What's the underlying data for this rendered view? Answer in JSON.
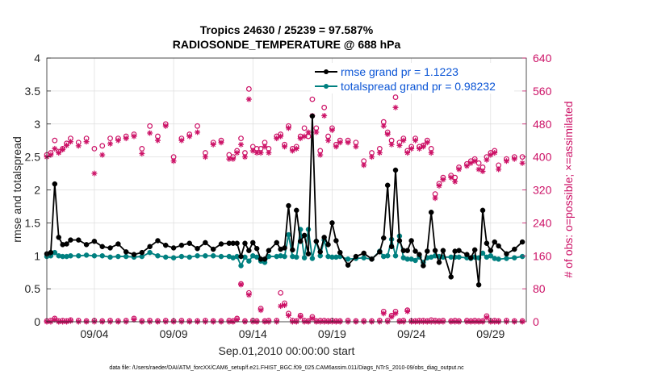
{
  "chart_data": {
    "type": "line",
    "title": "Tropics 24630 / 25239 = 97.587%",
    "subtitle": "RADIOSONDE_TEMPERATURE @ 688 hPa",
    "xlabel": "Sep.01,2010 00:00:00 start",
    "ylabel_left": "rmse and totalspread",
    "ylabel_right": "# of obs: o=possible; ×=assimilated",
    "footer": "data file: /Users/raeder/DAI/ATM_forcXX/CAM6_setup/f.e21.FHIST_BGC.f09_025.CAM6assim.011/Diags_NTrS_2010-09/obs_diag_output.nc",
    "xlim": [
      0.5,
      30.75
    ],
    "ylim_left": [
      0,
      4
    ],
    "ylim_right": [
      0,
      640
    ],
    "x_ticks": [
      3.5,
      8.5,
      13.5,
      18.5,
      23.5,
      28.5
    ],
    "x_tick_labels": [
      "09/04",
      "09/09",
      "09/14",
      "09/19",
      "09/24",
      "09/29"
    ],
    "y_left_ticks": [
      0,
      0.5,
      1,
      1.5,
      2,
      2.5,
      3,
      3.5,
      4
    ],
    "y_left_tick_labels": [
      "0",
      "0.5",
      "1",
      "1.5",
      "2",
      "2.5",
      "3",
      "3.5",
      "4"
    ],
    "y_right_ticks": [
      0,
      80,
      160,
      240,
      320,
      400,
      480,
      560,
      640
    ],
    "y_right_tick_labels": [
      "0",
      "80",
      "160",
      "240",
      "320",
      "400",
      "480",
      "560",
      "640"
    ],
    "grid": true,
    "legend_position": "top-right",
    "colors": {
      "rmse": "#000000",
      "spread": "#008080",
      "obs": "#cc1166",
      "legend_text": "#0b55d6",
      "right_axis": "#cc1166"
    },
    "series": [
      {
        "name": "rmse grand pr = 1.1223",
        "axis": "left",
        "x": [
          0.5,
          0.75,
          1,
          1.25,
          1.5,
          1.75,
          2,
          2.5,
          3,
          3.5,
          4,
          4.5,
          5,
          5.5,
          6,
          6.5,
          7,
          7.5,
          8,
          8.5,
          9,
          9.5,
          10,
          10.5,
          11,
          11.5,
          12,
          12.25,
          12.5,
          12.75,
          13,
          13.25,
          13.5,
          13.75,
          14,
          14.25,
          14.5,
          15,
          15.25,
          15.5,
          15.75,
          16,
          16.25,
          16.5,
          16.75,
          17,
          17.25,
          17.5,
          17.75,
          18,
          18.25,
          18.5,
          18.75,
          19,
          19.5,
          20,
          20.5,
          21,
          21.5,
          21.75,
          22,
          22.25,
          22.5,
          22.75,
          23,
          23.25,
          23.5,
          23.75,
          24,
          24.25,
          24.5,
          24.75,
          25,
          25.25,
          25.5,
          26,
          26.25,
          26.5,
          27,
          27.25,
          27.5,
          27.75,
          28,
          28.25,
          28.5,
          28.75,
          29,
          29.5,
          30,
          30.5
        ],
        "y": [
          1.03,
          1.05,
          2.09,
          1.28,
          1.17,
          1.18,
          1.24,
          1.24,
          1.17,
          1.22,
          1.14,
          1.12,
          1.18,
          1.06,
          1.02,
          1.05,
          1.14,
          1.23,
          1.16,
          1.12,
          1.16,
          1.19,
          1.11,
          1.2,
          1.1,
          1.18,
          1.19,
          1.19,
          1.19,
          0.99,
          1.19,
          1.08,
          1.2,
          1.11,
          0.95,
          0.95,
          1.08,
          1.2,
          1.1,
          1.12,
          1.76,
          1.09,
          1.69,
          1.22,
          1.31,
          1.03,
          3.12,
          1.22,
          1.06,
          1.28,
          1.17,
          1.5,
          1.23,
          1.05,
          0.86,
          0.99,
          1.04,
          0.95,
          1.06,
          1.27,
          2.07,
          1.14,
          2.3,
          1.23,
          1.08,
          1.08,
          1.23,
          1.07,
          1.02,
          0.85,
          1.07,
          1.66,
          1.08,
          0.9,
          1.08,
          0.68,
          1.07,
          1.08,
          1.02,
          0.97,
          1.09,
          0.56,
          1.69,
          1.19,
          1.08,
          1.21,
          1.15,
          1.03,
          1.1,
          1.21
        ]
      },
      {
        "name": "totalspread grand pr = 0.98232",
        "axis": "left",
        "x": [
          0.5,
          0.75,
          1,
          1.25,
          1.5,
          1.75,
          2,
          2.5,
          3,
          3.5,
          4,
          4.5,
          5,
          5.5,
          6,
          6.5,
          7,
          7.5,
          8,
          8.5,
          9,
          9.5,
          10,
          10.5,
          11,
          11.5,
          12,
          12.25,
          12.5,
          12.75,
          13,
          13.25,
          13.5,
          13.75,
          14,
          14.25,
          14.5,
          15,
          15.25,
          15.5,
          15.75,
          16,
          16.25,
          16.5,
          16.75,
          17,
          17.25,
          17.5,
          17.75,
          18,
          18.25,
          18.5,
          18.75,
          19,
          19.5,
          20,
          20.5,
          21,
          21.5,
          21.75,
          22,
          22.25,
          22.5,
          22.75,
          23,
          23.25,
          23.5,
          23.75,
          24,
          24.25,
          24.5,
          24.75,
          25,
          25.25,
          25.5,
          26,
          26.25,
          26.5,
          27,
          27.25,
          27.5,
          27.75,
          28,
          28.25,
          28.5,
          28.75,
          29,
          29.5,
          30,
          30.5
        ],
        "y": [
          0.99,
          1.0,
          1.05,
          1.0,
          0.99,
          0.99,
          1.0,
          1.0,
          1.01,
          1.0,
          1.0,
          0.98,
          0.99,
          0.99,
          0.98,
          0.99,
          1.05,
          1.0,
          0.98,
          0.97,
          0.99,
          0.98,
          1.0,
          1.0,
          1.0,
          0.99,
          0.99,
          0.97,
          0.99,
          0.85,
          0.98,
          0.92,
          1.0,
          0.98,
          0.92,
          0.9,
          0.99,
          0.99,
          1.0,
          0.99,
          1.32,
          0.99,
          0.98,
          1.4,
          0.97,
          1.4,
          0.96,
          1.22,
          1.0,
          1.24,
          0.99,
          0.98,
          0.98,
          0.99,
          0.95,
          0.96,
          0.97,
          0.95,
          1.07,
          0.99,
          1.0,
          1.25,
          1.0,
          1.3,
          0.97,
          0.95,
          0.95,
          0.93,
          0.98,
          0.9,
          0.97,
          0.98,
          1.0,
          0.99,
          0.98,
          0.98,
          0.98,
          0.98,
          0.97,
          0.96,
          0.98,
          0.97,
          1.04,
          0.98,
          1.0,
          0.96,
          0.95,
          0.96,
          0.97,
          0.99
        ]
      }
    ],
    "obs_possible": {
      "name": "possible",
      "marker": "circle",
      "axis": "right",
      "x": [
        0.5,
        0.75,
        1,
        1.25,
        1.5,
        1.75,
        2,
        2.5,
        3,
        3.5,
        4,
        4.5,
        5,
        5.5,
        6,
        6.5,
        7,
        7.5,
        8,
        8.5,
        9,
        9.5,
        10,
        10.5,
        11,
        11.5,
        12,
        12.25,
        12.5,
        12.75,
        13,
        13.25,
        13.5,
        13.75,
        14,
        14.25,
        14.5,
        15,
        15.25,
        15.5,
        15.75,
        16,
        16.25,
        16.5,
        16.75,
        17,
        17.25,
        17.5,
        17.75,
        18,
        18.25,
        18.5,
        18.75,
        19,
        19.5,
        20,
        20.5,
        21,
        21.5,
        21.75,
        22,
        22.25,
        22.5,
        22.75,
        23,
        23.25,
        23.5,
        23.75,
        24,
        24.25,
        24.5,
        24.75,
        25,
        25.25,
        25.5,
        26,
        26.25,
        26.5,
        27,
        27.25,
        27.5,
        27.75,
        28,
        28.25,
        28.5,
        28.75,
        29,
        29.5,
        30,
        30.5
      ],
      "y": [
        405,
        410,
        440,
        413,
        420,
        433,
        445,
        435,
        445,
        420,
        427,
        445,
        445,
        450,
        455,
        420,
        475,
        450,
        480,
        400,
        445,
        455,
        475,
        410,
        435,
        440,
        405,
        400,
        415,
        445,
        410,
        565,
        425,
        420,
        420,
        435,
        420,
        450,
        455,
        430,
        475,
        420,
        425,
        450,
        470,
        450,
        540,
        470,
        415,
        520,
        450,
        470,
        430,
        440,
        440,
        435,
        390,
        410,
        420,
        485,
        460,
        440,
        545,
        435,
        445,
        415,
        425,
        445,
        425,
        428,
        440,
        420,
        310,
        335,
        350,
        355,
        350,
        375,
        383,
        390,
        395,
        385,
        375,
        400,
        410,
        415,
        380,
        395,
        400,
        400
      ]
    },
    "obs_assimilated": {
      "name": "assimilated",
      "marker": "asterisk",
      "axis": "right",
      "x": [
        0.5,
        0.75,
        1,
        1.25,
        1.5,
        1.75,
        2,
        2.5,
        3,
        3.5,
        4,
        4.5,
        5,
        5.5,
        6,
        6.5,
        7,
        7.5,
        8,
        8.5,
        9,
        9.5,
        10,
        10.5,
        11,
        11.5,
        12,
        12.25,
        12.5,
        12.75,
        13,
        13.25,
        13.5,
        13.75,
        14,
        14.25,
        14.5,
        15,
        15.25,
        15.5,
        15.75,
        16,
        16.25,
        16.5,
        16.75,
        17,
        17.25,
        17.5,
        17.75,
        18,
        18.25,
        18.5,
        18.75,
        19,
        19.5,
        20,
        20.5,
        21,
        21.5,
        21.75,
        22,
        22.25,
        22.5,
        22.75,
        23,
        23.25,
        23.5,
        23.75,
        24,
        24.25,
        24.5,
        24.75,
        25,
        25.25,
        25.5,
        26,
        26.25,
        26.5,
        27,
        27.25,
        27.5,
        27.75,
        28,
        28.25,
        28.5,
        28.75,
        29,
        29.5,
        30,
        30.5
      ],
      "y": [
        400,
        405,
        420,
        410,
        418,
        428,
        437,
        427,
        437,
        360,
        405,
        432,
        440,
        445,
        450,
        408,
        458,
        440,
        475,
        390,
        440,
        450,
        460,
        400,
        430,
        435,
        395,
        395,
        410,
        430,
        400,
        540,
        415,
        410,
        410,
        425,
        410,
        445,
        450,
        425,
        470,
        415,
        420,
        445,
        450,
        460,
        500,
        460,
        405,
        500,
        440,
        465,
        425,
        435,
        435,
        425,
        380,
        400,
        410,
        475,
        455,
        430,
        520,
        428,
        440,
        410,
        420,
        440,
        420,
        425,
        435,
        410,
        300,
        330,
        345,
        350,
        340,
        370,
        378,
        385,
        390,
        370,
        365,
        393,
        405,
        410,
        370,
        390,
        395,
        385
      ]
    },
    "obs_low_possible": {
      "x": [
        0.5,
        0.75,
        1,
        1.25,
        1.5,
        1.75,
        2,
        2.5,
        3,
        3.5,
        4,
        4.5,
        5,
        5.5,
        6,
        6.5,
        7,
        7.5,
        8,
        8.5,
        9,
        9.5,
        10,
        10.5,
        11,
        11.5,
        12,
        12.25,
        12.5,
        12.75,
        13,
        13.25,
        13.5,
        13.75,
        14,
        14.25,
        14.5,
        15,
        15.25,
        15.5,
        15.75,
        16,
        16.25,
        16.5,
        16.75,
        17,
        17.25,
        17.5,
        17.75,
        18,
        18.25,
        18.5,
        18.75,
        19,
        19.5,
        20,
        20.5,
        21,
        21.5,
        21.75,
        22,
        22.25,
        22.5,
        22.75,
        23,
        23.25,
        23.5,
        23.75,
        24,
        24.25,
        24.5,
        24.75,
        25,
        25.25,
        25.5,
        26,
        26.25,
        26.5,
        27,
        27.25,
        27.5,
        27.75,
        28,
        28.25,
        28.5,
        28.75,
        29,
        29.5,
        30,
        30.5
      ],
      "y": [
        2,
        3,
        8,
        2,
        3,
        2,
        4,
        3,
        2,
        3,
        2,
        3,
        2,
        3,
        8,
        2,
        3,
        2,
        3,
        2,
        3,
        2,
        2,
        3,
        2,
        2,
        3,
        2,
        8,
        92,
        2,
        70,
        3,
        2,
        32,
        2,
        3,
        3,
        70,
        45,
        20,
        3,
        2,
        15,
        3,
        2,
        12,
        2,
        3,
        3,
        2,
        3,
        2,
        2,
        3,
        2,
        2,
        2,
        3,
        25,
        3,
        15,
        25,
        2,
        3,
        28,
        2,
        2,
        3,
        3,
        2,
        4,
        3,
        2,
        3,
        2,
        3,
        2,
        3,
        2,
        3,
        2,
        2,
        14,
        2,
        3,
        2,
        3,
        2,
        2
      ]
    },
    "obs_low_assimilated": {
      "x": [
        0.5,
        0.75,
        1,
        1.25,
        1.5,
        1.75,
        2,
        2.5,
        3,
        3.5,
        4,
        4.5,
        5,
        5.5,
        6,
        6.5,
        7,
        7.5,
        8,
        8.5,
        9,
        9.5,
        10,
        10.5,
        11,
        11.5,
        12,
        12.25,
        12.5,
        12.75,
        13,
        13.25,
        13.5,
        13.75,
        14,
        14.25,
        14.5,
        15,
        15.25,
        15.5,
        15.75,
        16,
        16.25,
        16.5,
        16.75,
        17,
        17.25,
        17.5,
        17.75,
        18,
        18.25,
        18.5,
        18.75,
        19,
        19.5,
        20,
        20.5,
        21,
        21.5,
        21.75,
        22,
        22.25,
        22.5,
        22.75,
        23,
        23.25,
        23.5,
        23.75,
        24,
        24.25,
        24.5,
        24.75,
        25,
        25.25,
        25.5,
        26,
        26.25,
        26.5,
        27,
        27.25,
        27.5,
        27.75,
        28,
        28.25,
        28.5,
        28.75,
        29,
        29.5,
        30,
        30.5
      ],
      "y": [
        0,
        0,
        5,
        0,
        0,
        0,
        2,
        0,
        0,
        0,
        0,
        0,
        0,
        0,
        5,
        0,
        0,
        0,
        0,
        0,
        0,
        0,
        0,
        0,
        0,
        0,
        0,
        0,
        5,
        90,
        0,
        65,
        0,
        0,
        28,
        0,
        0,
        0,
        38,
        40,
        15,
        0,
        0,
        12,
        0,
        0,
        8,
        0,
        0,
        0,
        0,
        0,
        0,
        0,
        0,
        0,
        0,
        0,
        0,
        20,
        0,
        12,
        20,
        0,
        0,
        25,
        0,
        0,
        0,
        0,
        0,
        0,
        0,
        0,
        0,
        0,
        0,
        0,
        0,
        0,
        0,
        0,
        0,
        10,
        0,
        0,
        0,
        0,
        0,
        0
      ]
    }
  }
}
